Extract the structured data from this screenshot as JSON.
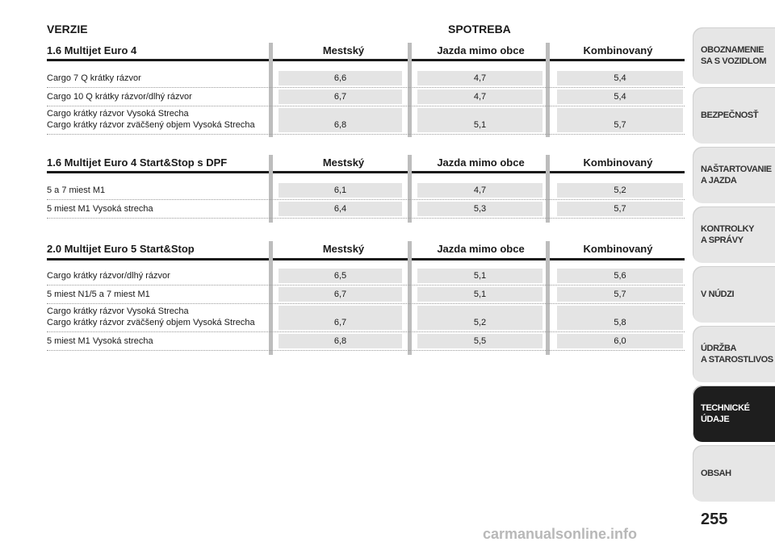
{
  "header": {
    "verzie": "VERZIE",
    "spotreba": "SPOTREBA"
  },
  "sections": [
    {
      "title": "1.6 Multijet Euro 4",
      "columns": [
        "Mestský",
        "Jazda mimo obce",
        "Kombinovaný"
      ],
      "rows": [
        {
          "label": "Cargo 7 Q krátky rázvor",
          "values": [
            "6,6",
            "4,7",
            "5,4"
          ]
        },
        {
          "label": "Cargo 10 Q krátky rázvor/dlhý rázvor",
          "values": [
            "6,7",
            "4,7",
            "5,4"
          ]
        },
        {
          "label": "Cargo krátky rázvor Vysoká Strecha\nCargo krátky rázvor zväčšený objem Vysoká Strecha",
          "values": [
            "6,8",
            "5,1",
            "5,7"
          ]
        }
      ]
    },
    {
      "title": "1.6 Multijet Euro 4 Start&Stop s DPF",
      "columns": [
        "Mestský",
        "Jazda mimo obce",
        "Kombinovaný"
      ],
      "rows": [
        {
          "label": "5 a 7 miest M1",
          "values": [
            "6,1",
            "4,7",
            "5,2"
          ]
        },
        {
          "label": "5 miest M1 Vysoká strecha",
          "values": [
            "6,4",
            "5,3",
            "5,7"
          ]
        }
      ]
    },
    {
      "title": "2.0 Multijet Euro 5 Start&Stop",
      "columns": [
        "Mestský",
        "Jazda mimo obce",
        "Kombinovaný"
      ],
      "rows": [
        {
          "label": "Cargo krátky rázvor/dlhý rázvor",
          "values": [
            "6,5",
            "5,1",
            "5,6"
          ]
        },
        {
          "label": "5 miest N1/5 a 7 miest M1",
          "values": [
            "6,7",
            "5,1",
            "5,7"
          ]
        },
        {
          "label": "Cargo krátky rázvor Vysoká Strecha\nCargo krátky rázvor zväčšený objem Vysoká Strecha",
          "values": [
            "6,7",
            "5,2",
            "5,8"
          ]
        },
        {
          "label": "5 miest M1 Vysoká strecha",
          "values": [
            "6,8",
            "5,5",
            "6,0"
          ]
        }
      ]
    }
  ],
  "tabs": [
    {
      "label": "OBOZNAMENIE\nSA S VOZIDLOM",
      "active": false
    },
    {
      "label": "BEZPEČNOSŤ",
      "active": false
    },
    {
      "label": "NAŠTARTOVANIE\nA JAZDA",
      "active": false
    },
    {
      "label": "KONTROLKY\nA SPRÁVY",
      "active": false
    },
    {
      "label": "V NÚDZI",
      "active": false
    },
    {
      "label": "ÚDRŽBA\nA STAROSTLIVOS",
      "active": false
    },
    {
      "label": "TECHNICKÉ\nÚDAJE",
      "active": true
    },
    {
      "label": "OBSAH",
      "active": false
    }
  ],
  "page_number": "255",
  "watermark": "carmanualsonline.info"
}
